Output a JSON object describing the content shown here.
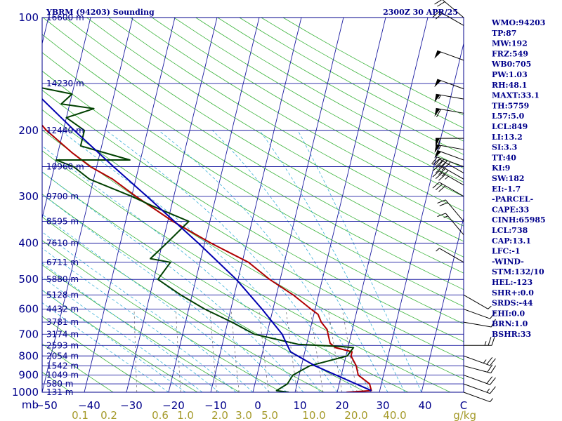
{
  "header": {
    "station": "YBRM (94203) Sounding",
    "time": "2300Z 30 APR/25"
  },
  "units": {
    "pressure": "mb",
    "mixing_ratio": "g/kg"
  },
  "indices": [
    "WMO:94203",
    "TP:87",
    "MW:192",
    "FRZ:549",
    "WB0:705",
    "PW:1.03",
    "RH:48.1",
    "MAXT:33.1",
    "TH:5759",
    "L57:5.0",
    "LCL:849",
    "LI:13.2",
    "SI:3.3",
    "TT:40",
    "KI:9",
    "SW:182",
    "EI:-1.7",
    "-PARCEL-",
    "CAPE:33",
    "CINH:65985",
    "LCL:738",
    "CAP:13.1",
    "LFC:-1",
    "-WIND-",
    "STM:132/10",
    "HEL:-123",
    "SHR+:0.0",
    "SRDS:-44",
    "EHI:0.0",
    "BRN:1.0",
    "BSHR:33"
  ],
  "chart_data": {
    "type": "line",
    "title": "YBRM (94203) Sounding",
    "subtitle": "2300Z 30 APR/25",
    "xlabel": "",
    "ylabel": "mb",
    "y_scale": "log",
    "ylim": [
      1000,
      100
    ],
    "xlim": [
      -50,
      50
    ],
    "pressure_ticks": [
      1000,
      900,
      800,
      700,
      600,
      500,
      400,
      300,
      200,
      100
    ],
    "temperature_ticks": [
      "−50",
      "−40",
      "−30",
      "−20",
      "−10",
      "0",
      "10",
      "20",
      "30",
      "40",
      "C"
    ],
    "mixing_ratio_ticks": [
      "0.1",
      "0.2",
      "0.6",
      "1.0",
      "2.0",
      "3.0",
      "5.0",
      "10.0",
      "20.0",
      "40.0",
      "g/kg"
    ],
    "height_labels": [
      {
        "p": 1000,
        "label": "131 m"
      },
      {
        "p": 950,
        "label": "580 m"
      },
      {
        "p": 900,
        "label": "1049 m"
      },
      {
        "p": 850,
        "label": "1542 m"
      },
      {
        "p": 800,
        "label": "2054 m"
      },
      {
        "p": 750,
        "label": "2593 m"
      },
      {
        "p": 700,
        "label": "3174 m"
      },
      {
        "p": 650,
        "label": "3781 m"
      },
      {
        "p": 600,
        "label": "4432 m"
      },
      {
        "p": 550,
        "label": "5128 m"
      },
      {
        "p": 500,
        "label": "5880 m"
      },
      {
        "p": 450,
        "label": "6711 m"
      },
      {
        "p": 400,
        "label": "7610 m"
      },
      {
        "p": 350,
        "label": "8595 m"
      },
      {
        "p": 300,
        "label": "9700 m"
      },
      {
        "p": 250,
        "label": "10960 m"
      },
      {
        "p": 200,
        "label": "12440 m"
      },
      {
        "p": 150,
        "label": "14230 m"
      },
      {
        "p": 100,
        "label": "16600 m"
      }
    ],
    "series": [
      {
        "color": "#b00000",
        "points": [
          [
            1000,
            22.2
          ],
          [
            990,
            28.0
          ],
          [
            950,
            27.2
          ],
          [
            900,
            24.0
          ],
          [
            850,
            23.0
          ],
          [
            800,
            21.2
          ],
          [
            780,
            21.2
          ],
          [
            760,
            17.0
          ],
          [
            740,
            15.5
          ],
          [
            700,
            14.5
          ],
          [
            680,
            14.0
          ],
          [
            650,
            12.2
          ],
          [
            620,
            11.0
          ],
          [
            600,
            9.0
          ],
          [
            550,
            4.0
          ],
          [
            500,
            -2.5
          ],
          [
            450,
            -8.5
          ],
          [
            400,
            -18.5
          ],
          [
            350,
            -28.8
          ],
          [
            300,
            -39.0
          ],
          [
            270,
            -45.5
          ],
          [
            250,
            -51.5
          ],
          [
            230,
            -56.5
          ],
          [
            200,
            -64.0
          ],
          [
            180,
            -68.5
          ],
          [
            150,
            -75.0
          ],
          [
            130,
            -77.0
          ],
          [
            115,
            -77.5
          ],
          [
            105,
            -75.0
          ],
          [
            100,
            -73.5
          ]
        ]
      },
      {
        "color": "#004000",
        "points": [
          [
            1000,
            8.5
          ],
          [
            990,
            5.5
          ],
          [
            950,
            7.7
          ],
          [
            900,
            8.5
          ],
          [
            850,
            12.0
          ],
          [
            800,
            20.3
          ],
          [
            760,
            21.3
          ],
          [
            755,
            18.0
          ],
          [
            745,
            8.0
          ],
          [
            700,
            -3.0
          ],
          [
            650,
            -9.0
          ],
          [
            600,
            -16.2
          ],
          [
            550,
            -22.7
          ],
          [
            500,
            -29.0
          ],
          [
            450,
            -27.0
          ],
          [
            440,
            -32.0
          ],
          [
            400,
            -29.0
          ],
          [
            350,
            -25.0
          ],
          [
            320,
            -34.0
          ],
          [
            300,
            -40.0
          ],
          [
            270,
            -51.0
          ],
          [
            250,
            -55.5
          ],
          [
            240,
            -60.0
          ],
          [
            240,
            -42.5
          ],
          [
            220,
            -55.0
          ],
          [
            200,
            -55.0
          ],
          [
            185,
            -60.0
          ],
          [
            175,
            -54.0
          ],
          [
            170,
            -62.0
          ],
          [
            160,
            -60.0
          ],
          [
            150,
            -73.0
          ],
          [
            120,
            -80.0
          ],
          [
            100,
            -93.0
          ]
        ]
      },
      {
        "color": "#0000b0",
        "points": [
          [
            990,
            28.0
          ],
          [
            850,
            13.2
          ],
          [
            780,
            6.6
          ],
          [
            700,
            3.6
          ],
          [
            600,
            -2.6
          ],
          [
            500,
            -10.4
          ],
          [
            400,
            -21.5
          ],
          [
            300,
            -36.4
          ],
          [
            250,
            -46.0
          ],
          [
            200,
            -57.4
          ],
          [
            150,
            -71.5
          ],
          [
            120,
            -82.0
          ]
        ]
      }
    ],
    "wind_barbs": [
      {
        "p": 1000,
        "dir": 110,
        "spd": 5
      },
      {
        "p": 950,
        "dir": 110,
        "spd": 15
      },
      {
        "p": 900,
        "dir": 110,
        "spd": 20
      },
      {
        "p": 850,
        "dir": 105,
        "spd": 20
      },
      {
        "p": 800,
        "dir": 110,
        "spd": 25
      },
      {
        "p": 750,
        "dir": 90,
        "spd": 25
      },
      {
        "p": 650,
        "dir": 100,
        "spd": 10
      },
      {
        "p": 600,
        "dir": 110,
        "spd": 10
      },
      {
        "p": 550,
        "dir": 120,
        "spd": 5
      },
      {
        "p": 450,
        "dir": 300,
        "spd": 5
      },
      {
        "p": 380,
        "dir": 320,
        "spd": 15
      },
      {
        "p": 350,
        "dir": 320,
        "spd": 20
      },
      {
        "p": 300,
        "dir": 300,
        "spd": 30
      },
      {
        "p": 280,
        "dir": 300,
        "spd": 35
      },
      {
        "p": 270,
        "dir": 300,
        "spd": 40
      },
      {
        "p": 260,
        "dir": 300,
        "spd": 40
      },
      {
        "p": 250,
        "dir": 290,
        "spd": 45
      },
      {
        "p": 240,
        "dir": 290,
        "spd": 50
      },
      {
        "p": 225,
        "dir": 280,
        "spd": 55
      },
      {
        "p": 210,
        "dir": 270,
        "spd": 60
      },
      {
        "p": 180,
        "dir": 280,
        "spd": 60
      },
      {
        "p": 165,
        "dir": 280,
        "spd": 55
      },
      {
        "p": 155,
        "dir": 290,
        "spd": 50
      },
      {
        "p": 130,
        "dir": 290,
        "spd": 50
      },
      {
        "p": 105,
        "dir": 300,
        "spd": 20
      },
      {
        "p": 100,
        "dir": 310,
        "spd": 20
      }
    ]
  }
}
